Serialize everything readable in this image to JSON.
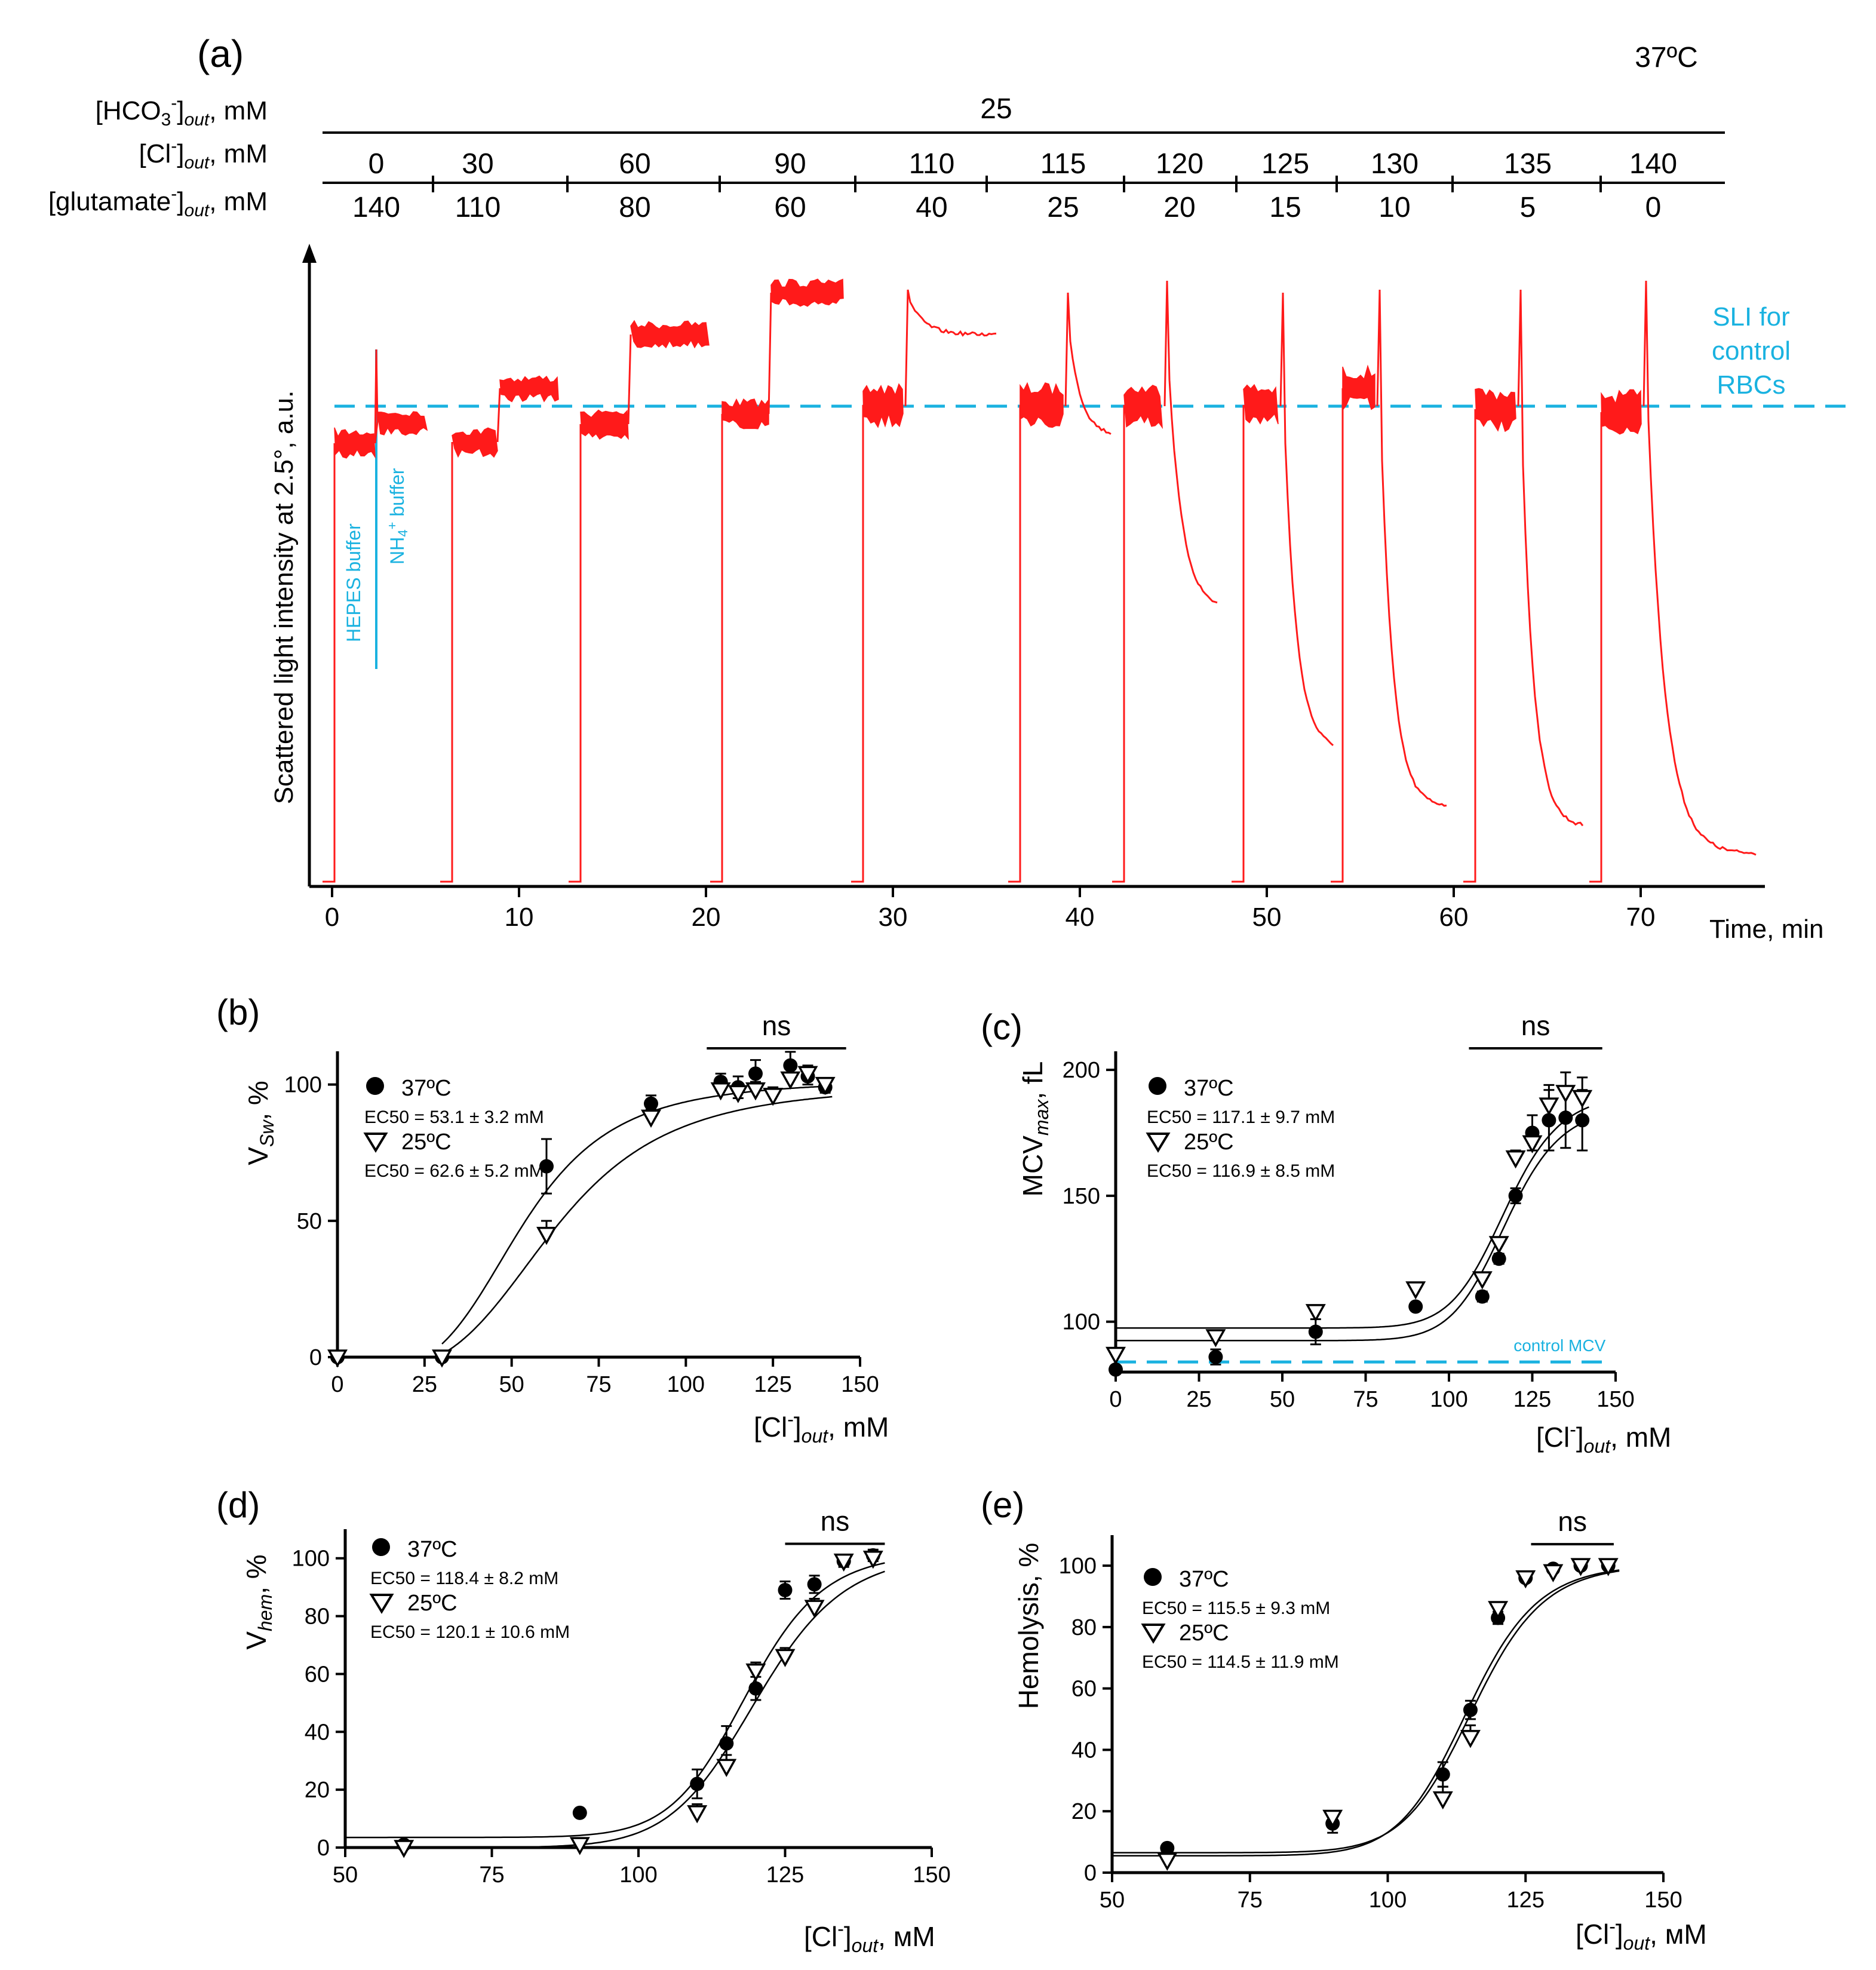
{
  "panel_a": {
    "label": "(a)",
    "temperature": "37ºC",
    "conditions": {
      "hco3_label": "[HCO3-]out, mM",
      "hco3_value": "25",
      "cl_label": "[Cl-]out, mM",
      "glutamate_label": "[glutamate-]out, mM",
      "cl_values": [
        "0",
        "30",
        "60",
        "90",
        "110",
        "115",
        "120",
        "125",
        "130",
        "135",
        "140"
      ],
      "glutamate_values": [
        "140",
        "110",
        "80",
        "60",
        "40",
        "25",
        "20",
        "15",
        "10",
        "5",
        "0"
      ]
    },
    "ylabel": "Scattered light intensity at 2.5°, a.u.",
    "xlabel": "Time, min",
    "xticks": [
      "0",
      "10",
      "20",
      "30",
      "40",
      "50",
      "60",
      "70"
    ],
    "sli_label_lines": [
      "SLI for",
      "control",
      "RBCs"
    ],
    "hepes_label": "HEPES buffer",
    "nh4_label": "NH4+ buffer"
  },
  "chart_data": [
    {
      "panel": "(b)",
      "type": "scatter",
      "ylabel": "VSw, %",
      "xlabel": "[Cl-]out, mM",
      "xlim": [
        0,
        150
      ],
      "ylim": [
        0,
        110
      ],
      "xticks": [
        0,
        25,
        50,
        75,
        100,
        125,
        150
      ],
      "yticks": [
        0,
        50,
        100
      ],
      "ns": "ns",
      "legend": [
        {
          "marker": "filled-circle",
          "name": "37ºC",
          "ec50": "EC50 = 53.1 ± 3.2 mM"
        },
        {
          "marker": "open-triangle",
          "name": "25ºC",
          "ec50": "EC50 = 62.6 ± 5.2 mM"
        }
      ],
      "series": [
        {
          "name": "37ºC",
          "x": [
            0,
            30,
            60,
            90,
            110,
            115,
            120,
            130,
            135,
            140
          ],
          "y": [
            0,
            0,
            70,
            93,
            101,
            99,
            104,
            107,
            103,
            99
          ],
          "err": [
            0,
            0,
            10,
            3,
            3,
            4,
            5,
            5,
            3,
            2
          ]
        },
        {
          "name": "25ºC",
          "x": [
            0,
            30,
            60,
            90,
            110,
            115,
            120,
            125,
            130,
            135,
            140
          ],
          "y": [
            0,
            0,
            45,
            88,
            98,
            97,
            98,
            96,
            102,
            104,
            100
          ],
          "err": [
            0,
            0,
            5,
            3,
            3,
            3,
            3,
            3,
            5,
            3,
            2
          ]
        }
      ],
      "fits": [
        {
          "name": "37ºC",
          "ec50": 53.1,
          "hill": 4.0,
          "bottom": -5,
          "top": 101.5
        },
        {
          "name": "25ºC",
          "ec50": 62.6,
          "hill": 3.8,
          "bottom": -5,
          "top": 100.0
        }
      ]
    },
    {
      "panel": "(c)",
      "type": "scatter",
      "ylabel": "MCVmax, fL",
      "xlabel": "[Cl-]out, mM",
      "xlim": [
        0,
        150
      ],
      "ylim": [
        80,
        205
      ],
      "xticks": [
        0,
        25,
        50,
        75,
        100,
        125,
        150
      ],
      "yticks": [
        100,
        150,
        200
      ],
      "ns": "ns",
      "control_label": "control MCV",
      "control_mcv": 84,
      "legend": [
        {
          "marker": "filled-circle",
          "name": "37ºC",
          "ec50": "EC50 = 117.1 ± 9.7 mM"
        },
        {
          "marker": "open-triangle",
          "name": "25ºC",
          "ec50": "EC50 = 116.9 ± 8.5 mM"
        }
      ],
      "series": [
        {
          "name": "37ºC",
          "x": [
            0,
            30,
            60,
            90,
            110,
            115,
            120,
            125,
            130,
            135,
            140
          ],
          "y": [
            81,
            86,
            96,
            106,
            110,
            125,
            150,
            175,
            180,
            181,
            180
          ],
          "err": [
            0,
            3,
            5,
            1,
            2,
            2,
            3,
            7,
            12,
            12,
            12
          ]
        },
        {
          "name": "25ºC",
          "x": [
            0,
            30,
            60,
            90,
            110,
            115,
            120,
            125,
            130,
            135,
            140
          ],
          "y": [
            87,
            94,
            104,
            113,
            117,
            131,
            165,
            171,
            186,
            191,
            189
          ],
          "err": [
            1,
            2,
            2,
            1,
            2,
            2,
            3,
            5,
            8,
            8,
            8
          ]
        }
      ],
      "fits": [
        {
          "name": "37ºC",
          "ec50": 117.1,
          "hill": 14,
          "bottom": 92.5,
          "top": 186
        },
        {
          "name": "25ºC",
          "ec50": 116.9,
          "hill": 14,
          "bottom": 97.5,
          "top": 191
        }
      ]
    },
    {
      "panel": "(d)",
      "type": "scatter",
      "ylabel": "Vhem, %",
      "xlabel": "[Cl-]out, мM",
      "xlim": [
        50,
        150
      ],
      "ylim": [
        0,
        108
      ],
      "xticks": [
        50,
        75,
        100,
        125,
        150
      ],
      "yticks": [
        0,
        20,
        40,
        60,
        80,
        100
      ],
      "ns": "ns",
      "legend": [
        {
          "marker": "filled-circle",
          "name": "37ºC",
          "ec50": "EC50 = 118.4 ± 8.2 mM"
        },
        {
          "marker": "open-triangle",
          "name": "25ºC",
          "ec50": "EC50 = 120.1 ± 10.6 mM"
        }
      ],
      "series": [
        {
          "name": "37ºC",
          "x": [
            60,
            90,
            110,
            115,
            120,
            125,
            130,
            135,
            140
          ],
          "y": [
            1,
            12,
            22,
            36,
            55,
            89,
            91,
            99,
            101
          ],
          "err": [
            1,
            1,
            5,
            6,
            4,
            3,
            3,
            2,
            2
          ]
        },
        {
          "name": "25ºC",
          "x": [
            60,
            90,
            110,
            115,
            120,
            125,
            130,
            135,
            140
          ],
          "y": [
            0,
            1,
            12,
            28,
            61,
            66,
            83,
            99,
            100
          ],
          "err": [
            0,
            0,
            3,
            4,
            3,
            3,
            3,
            2,
            2
          ]
        }
      ],
      "fits": [
        {
          "name": "37ºC",
          "ec50": 118.4,
          "hill": 18,
          "bottom": 3.5,
          "top": 102
        },
        {
          "name": "25ºC",
          "ec50": 120.1,
          "hill": 16,
          "bottom": 0,
          "top": 102
        }
      ]
    },
    {
      "panel": "(e)",
      "type": "scatter",
      "ylabel": "Hemolysis, %",
      "xlabel": "[Cl-]out, мM",
      "xlim": [
        50,
        150
      ],
      "ylim": [
        0,
        108
      ],
      "xticks": [
        50,
        75,
        100,
        125,
        150
      ],
      "yticks": [
        0,
        20,
        40,
        60,
        80,
        100
      ],
      "ns": "ns",
      "legend": [
        {
          "marker": "filled-circle",
          "name": "37ºC",
          "ec50": "EC50 = 115.5 ± 9.3 mM"
        },
        {
          "marker": "open-triangle",
          "name": "25ºC",
          "ec50": "EC50 = 114.5 ± 11.9 mM"
        }
      ],
      "series": [
        {
          "name": "37ºC",
          "x": [
            60,
            90,
            110,
            115,
            120,
            125,
            130,
            135,
            140
          ],
          "y": [
            8,
            16,
            32,
            53,
            83,
            96,
            99,
            100,
            100
          ],
          "err": [
            1,
            3,
            4,
            3,
            2,
            1,
            1,
            1,
            1
          ]
        },
        {
          "name": "25ºC",
          "x": [
            60,
            90,
            110,
            115,
            120,
            125,
            130,
            135,
            140
          ],
          "y": [
            4,
            18,
            24,
            44,
            86,
            96,
            98,
            100,
            100
          ],
          "err": [
            1,
            2,
            4,
            4,
            2,
            1,
            1,
            1,
            1
          ]
        }
      ],
      "fits": [
        {
          "name": "37ºC",
          "ec50": 115.5,
          "hill": 18,
          "bottom": 6.5,
          "top": 100.5
        },
        {
          "name": "25ºC",
          "ec50": 114.5,
          "hill": 18,
          "bottom": 5.5,
          "top": 100.5
        }
      ]
    }
  ]
}
